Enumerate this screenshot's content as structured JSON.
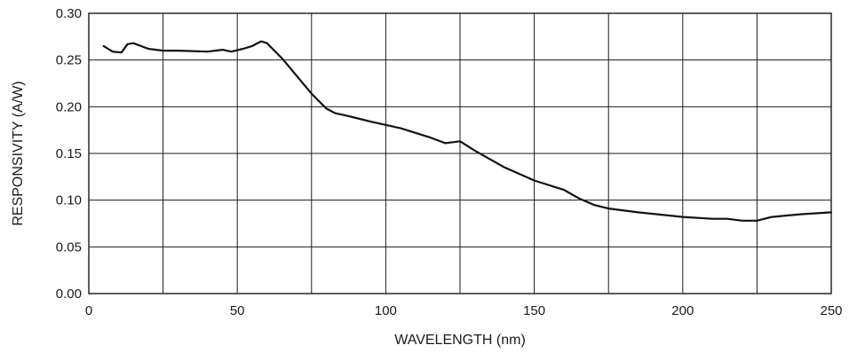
{
  "chart_data": {
    "type": "line",
    "title": "",
    "xlabel": "WAVELENGTH (nm)",
    "ylabel": "RESPONSIVITY (A/W)",
    "xlim": [
      0,
      250
    ],
    "ylim": [
      0,
      0.3
    ],
    "x_ticks": [
      0,
      50,
      100,
      150,
      200,
      250
    ],
    "x_tick_labels": [
      "0",
      "50",
      "100",
      "150",
      "200",
      "250"
    ],
    "y_ticks": [
      0,
      0.05,
      0.1,
      0.15,
      0.2,
      0.25,
      0.3
    ],
    "y_tick_labels": [
      "0.00",
      "0.05",
      "0.10",
      "0.15",
      "0.20",
      "0.25",
      "0.30"
    ],
    "x_grid_step": 25,
    "grid": true,
    "legend": "none",
    "line_color": "#111111",
    "series": [
      {
        "x": [
          5,
          8,
          11,
          13,
          15,
          20,
          25,
          30,
          40,
          45,
          48,
          52,
          55,
          58,
          60,
          65,
          70,
          75,
          80,
          83,
          86,
          90,
          95,
          105,
          115,
          120,
          125,
          130,
          135,
          140,
          150,
          160,
          165,
          170,
          175,
          185,
          200,
          210,
          215,
          220,
          225,
          230,
          240,
          250
        ],
        "y": [
          0.265,
          0.259,
          0.258,
          0.267,
          0.268,
          0.262,
          0.26,
          0.26,
          0.259,
          0.261,
          0.259,
          0.262,
          0.265,
          0.27,
          0.268,
          0.252,
          0.233,
          0.214,
          0.198,
          0.193,
          0.191,
          0.188,
          0.184,
          0.177,
          0.167,
          0.161,
          0.163,
          0.153,
          0.144,
          0.135,
          0.121,
          0.111,
          0.102,
          0.095,
          0.091,
          0.087,
          0.082,
          0.08,
          0.08,
          0.078,
          0.078,
          0.082,
          0.085,
          0.087
        ]
      }
    ]
  }
}
